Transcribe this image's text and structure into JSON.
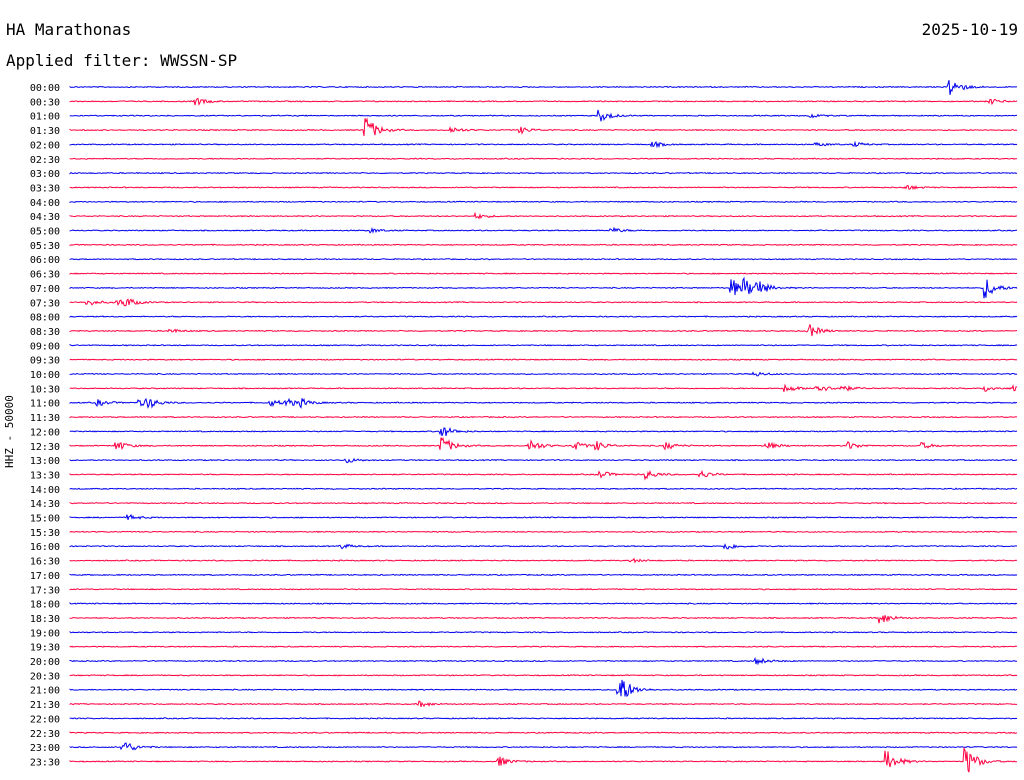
{
  "header": {
    "station": "HA Marathonas",
    "date": "2025-10-19",
    "filter_label": "Applied filter: WWSSN-SP"
  },
  "channel_label": "HHZ - 50000",
  "colors": {
    "odd_trace": "#0000ee",
    "even_trace": "#ff0040",
    "background": "#ffffff",
    "text": "#000000"
  },
  "chart_data": {
    "type": "line",
    "subtype": "helicorder",
    "xlabel": "",
    "ylabel": "HHZ - 50000",
    "tick_labels": [
      "00:00",
      "00:30",
      "01:00",
      "01:30",
      "02:00",
      "02:30",
      "03:00",
      "03:30",
      "04:00",
      "04:30",
      "05:00",
      "05:30",
      "06:00",
      "06:30",
      "07:00",
      "07:30",
      "08:00",
      "08:30",
      "09:00",
      "09:30",
      "10:00",
      "10:30",
      "11:00",
      "11:30",
      "12:00",
      "12:30",
      "13:00",
      "13:30",
      "14:00",
      "14:30",
      "15:00",
      "15:30",
      "16:00",
      "16:30",
      "17:00",
      "17:30",
      "18:00",
      "18:30",
      "19:00",
      "19:30",
      "20:00",
      "20:30",
      "21:00",
      "21:30",
      "22:00",
      "22:30",
      "23:00",
      "23:30"
    ],
    "series_colors": [
      "#0000ee",
      "#ff0040"
    ],
    "events_minutes_into_row": [
      [
        0,
        []
      ],
      [
        1,
        [
          [
            4.0,
            0.6
          ],
          [
            29.2,
            0.4
          ]
        ]
      ],
      [
        2,
        [
          [
            16.8,
            1.0
          ],
          [
            23.5,
            0.3
          ]
        ]
      ],
      [
        3,
        [
          [
            9.4,
            2.2
          ],
          [
            12.1,
            0.5
          ],
          [
            14.3,
            0.5
          ]
        ]
      ],
      [
        4,
        [
          [
            18.5,
            0.4
          ],
          [
            23.7,
            0.3
          ],
          [
            24.9,
            0.3
          ]
        ]
      ],
      [
        7,
        [
          [
            26.5,
            0.4
          ]
        ]
      ],
      [
        9,
        [
          [
            12.9,
            0.4
          ]
        ]
      ],
      [
        10,
        [
          [
            9.6,
            0.3
          ],
          [
            17.2,
            0.4
          ]
        ]
      ],
      [
        14,
        [
          [
            21.0,
            1.5
          ],
          [
            21.4,
            1.2
          ],
          [
            21.8,
            1.0
          ],
          [
            29.0,
            1.8
          ]
        ]
      ],
      [
        15,
        [
          [
            0.6,
            0.5
          ],
          [
            1.5,
            0.5
          ],
          [
            1.8,
            0.6
          ]
        ]
      ],
      [
        17,
        [
          [
            3.2,
            0.3
          ],
          [
            23.4,
            1.2
          ]
        ]
      ],
      [
        20,
        [
          [
            21.7,
            0.4
          ]
        ]
      ],
      [
        21,
        [
          [
            22.7,
            0.6
          ],
          [
            23.7,
            0.7
          ],
          [
            24.4,
            0.6
          ],
          [
            29.0,
            0.5
          ],
          [
            29.9,
            0.4
          ]
        ]
      ],
      [
        22,
        [
          [
            0.9,
            0.5
          ],
          [
            2.2,
            0.6
          ],
          [
            2.5,
            0.7
          ],
          [
            6.4,
            0.5
          ],
          [
            6.9,
            0.6
          ],
          [
            7.3,
            0.6
          ]
        ]
      ],
      [
        24,
        [
          [
            11.8,
            1.0
          ]
        ]
      ],
      [
        25,
        [
          [
            1.5,
            0.8
          ],
          [
            11.8,
            1.5
          ],
          [
            14.6,
            1.0
          ],
          [
            16.0,
            0.7
          ],
          [
            16.7,
            0.7
          ],
          [
            18.9,
            0.6
          ],
          [
            22.1,
            0.6
          ],
          [
            24.7,
            0.6
          ],
          [
            27.0,
            0.5
          ]
        ]
      ],
      [
        26,
        [
          [
            8.8,
            0.4
          ]
        ]
      ],
      [
        27,
        [
          [
            16.8,
            0.6
          ],
          [
            18.3,
            0.7
          ],
          [
            20.0,
            0.6
          ]
        ]
      ],
      [
        30,
        [
          [
            1.9,
            0.4
          ]
        ]
      ],
      [
        32,
        [
          [
            8.6,
            0.4
          ],
          [
            20.8,
            0.6
          ]
        ]
      ],
      [
        33,
        [
          [
            17.8,
            0.3
          ]
        ]
      ],
      [
        37,
        [
          [
            25.7,
            1.0
          ]
        ]
      ],
      [
        40,
        [
          [
            21.8,
            0.5
          ]
        ]
      ],
      [
        42,
        [
          [
            17.4,
            3.0
          ]
        ]
      ],
      [
        43,
        [
          [
            11.1,
            0.5
          ]
        ]
      ],
      [
        46,
        [
          [
            1.7,
            1.2
          ]
        ]
      ],
      [
        47,
        [
          [
            13.6,
            0.8
          ],
          [
            25.9,
            1.8
          ],
          [
            28.4,
            2.5
          ]
        ]
      ],
      [
        0,
        [
          [
            27.9,
            1.6
          ]
        ]
      ]
    ]
  }
}
